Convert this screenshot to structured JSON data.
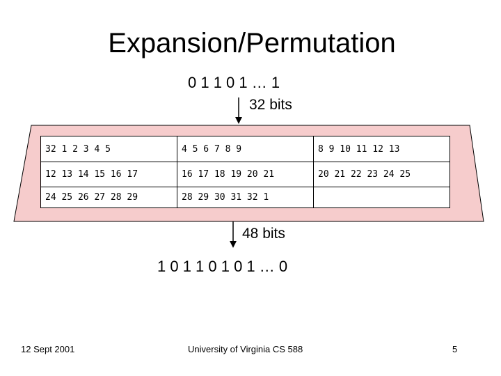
{
  "title": "Expansion/Permutation",
  "input": {
    "bits": "0 1 1 0 1 … 1",
    "size": "32 bits"
  },
  "table": {
    "rows": [
      [
        "32 1 2 3 4 5",
        "4 5 6 7 8 9",
        "8 9 10 11 12 13"
      ],
      [
        "12 13 14 15 16 17",
        "16 17 18 19 20 21",
        "20 21 22 23 24 25"
      ],
      [
        "24 25 26 27 28 29",
        "28 29 30 31 32 1"
      ]
    ]
  },
  "output": {
    "size": "48 bits",
    "bits": "1 0 1 1 0 1 0 1 … 0"
  },
  "footer": {
    "date": "12 Sept 2001",
    "course": "University of Virginia CS 588",
    "page": "5"
  }
}
